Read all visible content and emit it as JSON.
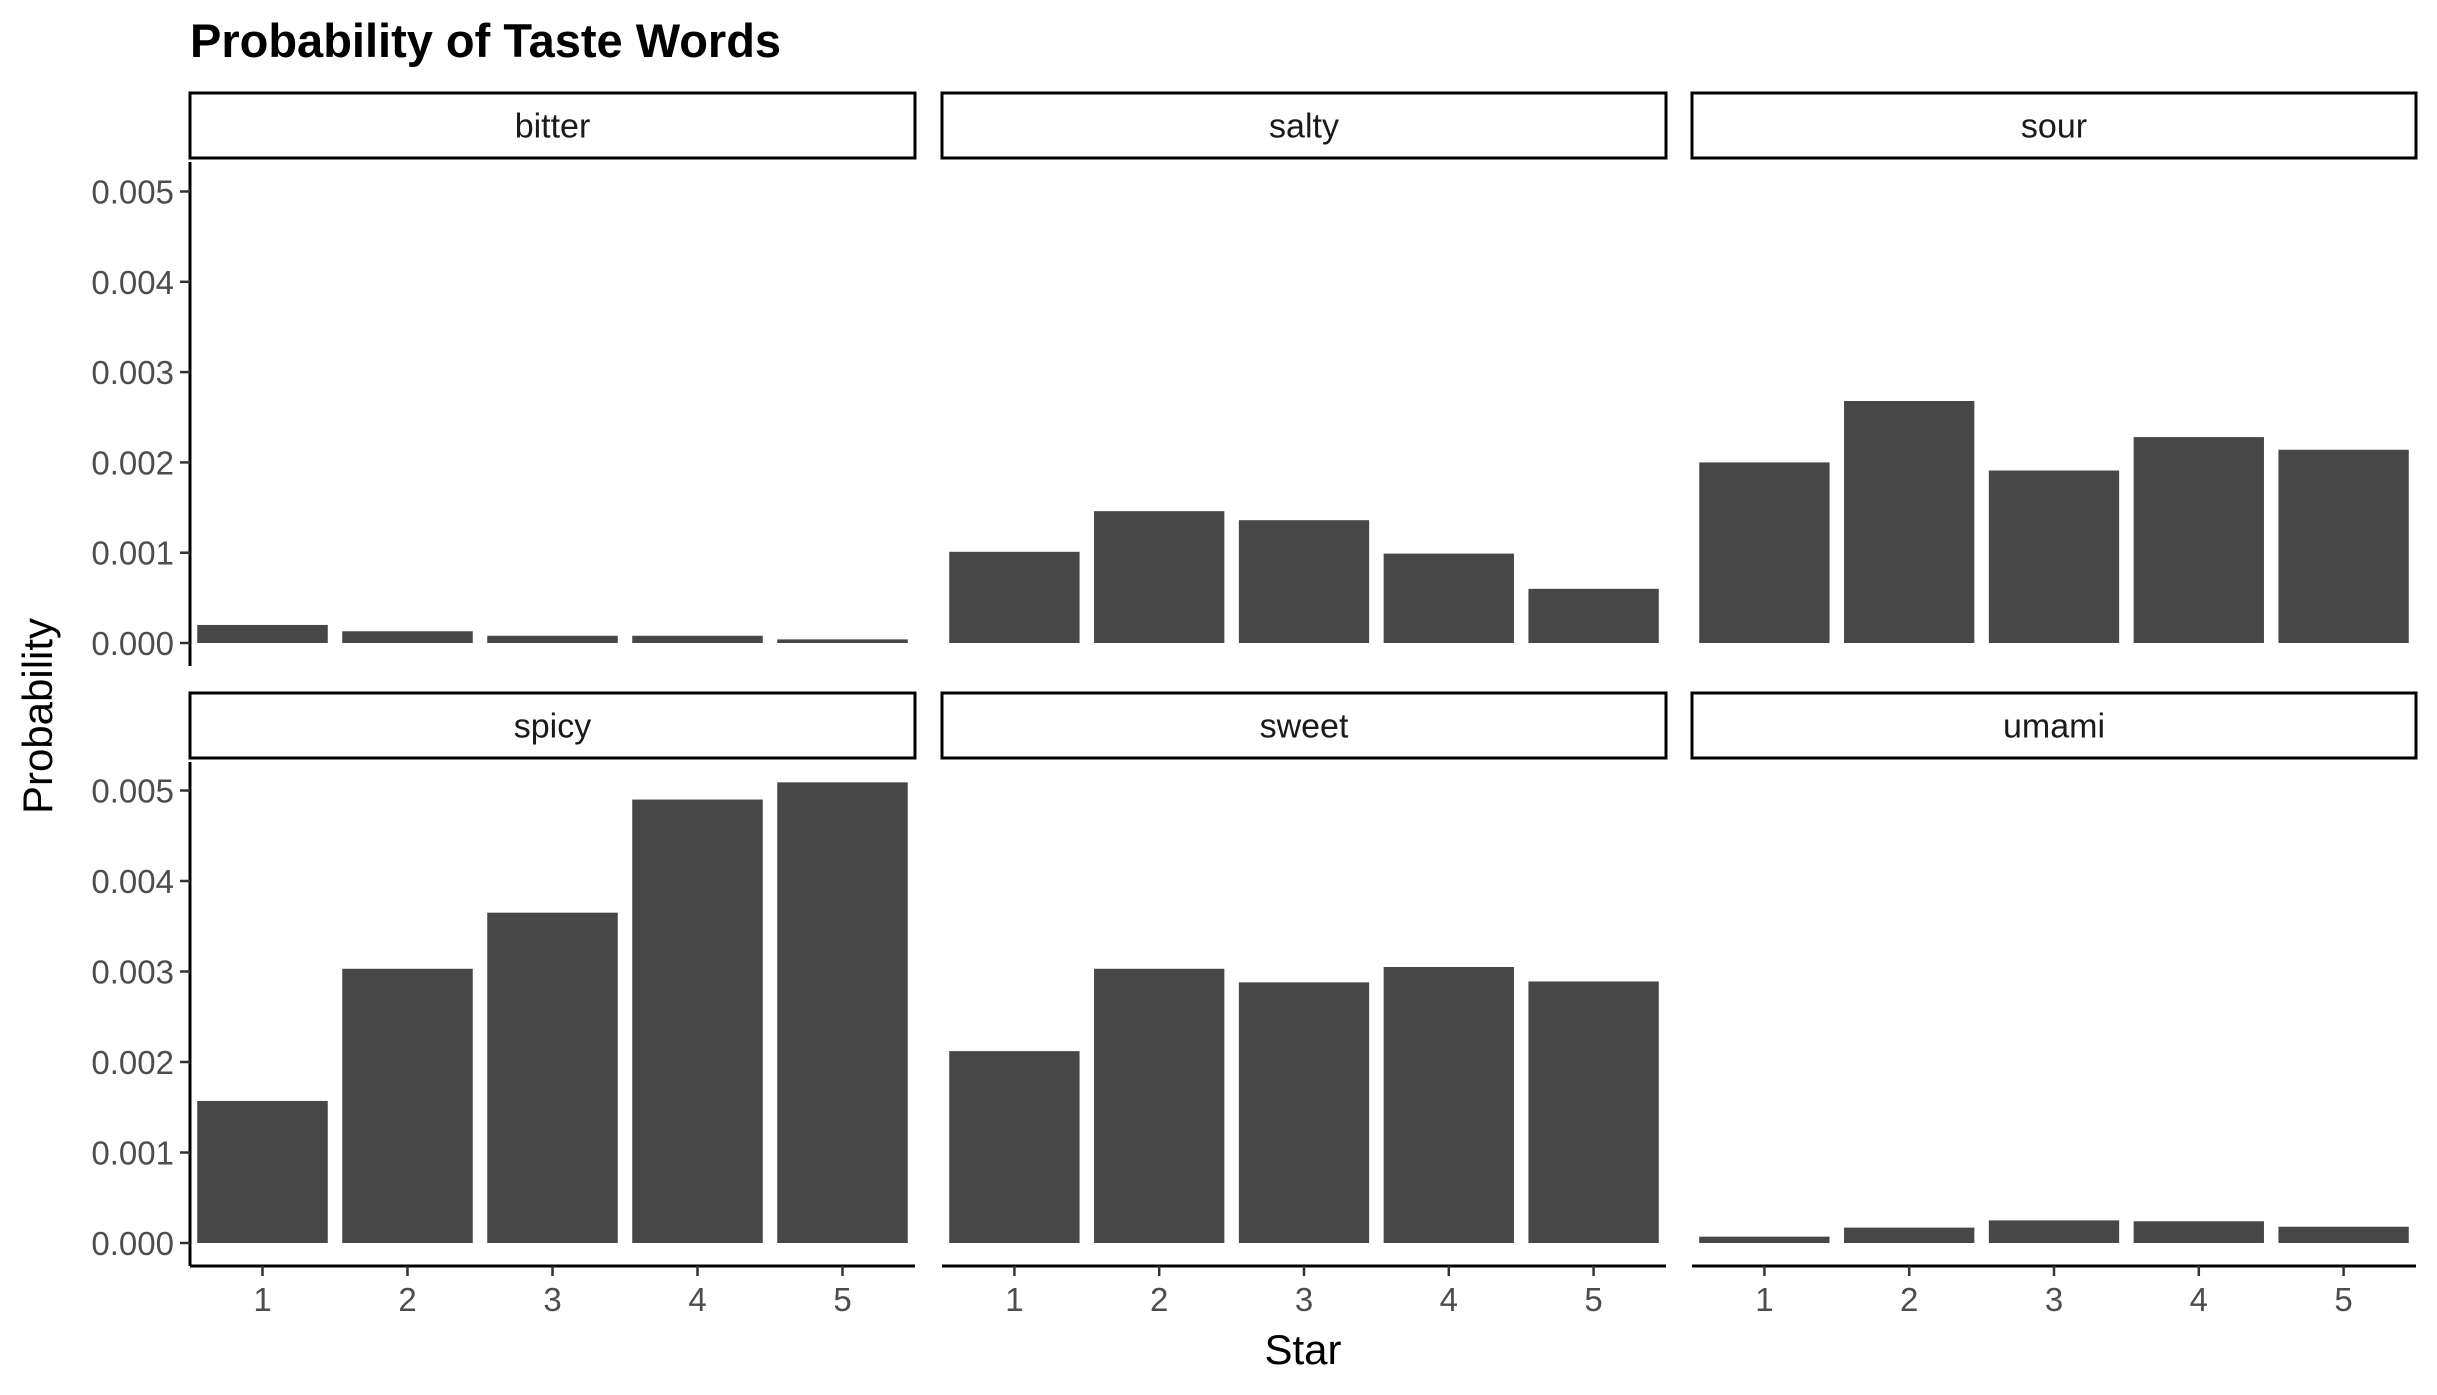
{
  "chart_data": {
    "type": "bar",
    "title": "Probability of Taste Words",
    "xlabel": "Star",
    "ylabel": "Probability",
    "categories": [
      "1",
      "2",
      "3",
      "4",
      "5"
    ],
    "ylim": [
      0,
      0.0052
    ],
    "yticks": [
      "0.000",
      "0.001",
      "0.002",
      "0.003",
      "0.004",
      "0.005"
    ],
    "bar_color": "#474747",
    "grid": false,
    "facets": [
      {
        "name": "bitter",
        "values": [
          0.0002,
          0.00013,
          8e-05,
          8e-05,
          4e-05
        ]
      },
      {
        "name": "salty",
        "values": [
          0.00101,
          0.00146,
          0.00136,
          0.00099,
          0.0006
        ]
      },
      {
        "name": "sour",
        "values": [
          0.002,
          0.00268,
          0.00191,
          0.00228,
          0.00214
        ]
      },
      {
        "name": "spicy",
        "values": [
          0.00157,
          0.00303,
          0.00365,
          0.0049,
          0.00509
        ]
      },
      {
        "name": "sweet",
        "values": [
          0.00212,
          0.00303,
          0.00288,
          0.00305,
          0.00289
        ]
      },
      {
        "name": "umami",
        "values": [
          7e-05,
          0.00017,
          0.00025,
          0.00024,
          0.00018
        ]
      }
    ]
  }
}
